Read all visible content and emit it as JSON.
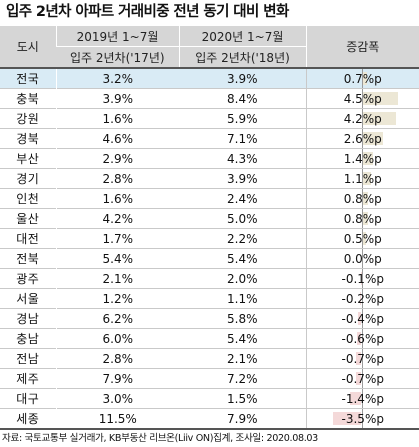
{
  "title": "입주 2년차 아파트 거래비중 전년 동기 대비 변화",
  "header": {
    "col_city": "도시",
    "col_2019": "2019년 1~7월",
    "col_2020": "2020년 1~7월",
    "col_change": "증감폭",
    "sub_2019": "입주 2년차('17년)",
    "sub_2020": "입주 2년차('18년)"
  },
  "chart_data": {
    "type": "table",
    "title": "입주 2년차 아파트 거래비중 전년 동기 대비 변화",
    "columns": [
      "도시",
      "2019년 1~7월 입주 2년차('17년)",
      "2020년 1~7월 입주 2년차('18년)",
      "증감폭"
    ],
    "rows": [
      {
        "city": "전국",
        "v2019": "3.2%",
        "v2020": "3.9%",
        "change": 0.7
      },
      {
        "city": "충북",
        "v2019": "3.9%",
        "v2020": "8.4%",
        "change": 4.5
      },
      {
        "city": "강원",
        "v2019": "1.6%",
        "v2020": "5.9%",
        "change": 4.2
      },
      {
        "city": "경북",
        "v2019": "4.6%",
        "v2020": "7.1%",
        "change": 2.6
      },
      {
        "city": "부산",
        "v2019": "2.9%",
        "v2020": "4.3%",
        "change": 1.4
      },
      {
        "city": "경기",
        "v2019": "2.8%",
        "v2020": "3.9%",
        "change": 1.1
      },
      {
        "city": "인천",
        "v2019": "1.6%",
        "v2020": "2.4%",
        "change": 0.8
      },
      {
        "city": "울산",
        "v2019": "4.2%",
        "v2020": "5.0%",
        "change": 0.8
      },
      {
        "city": "대전",
        "v2019": "1.7%",
        "v2020": "2.2%",
        "change": 0.5
      },
      {
        "city": "전북",
        "v2019": "5.4%",
        "v2020": "5.4%",
        "change": 0.0
      },
      {
        "city": "광주",
        "v2019": "2.1%",
        "v2020": "2.0%",
        "change": -0.1
      },
      {
        "city": "서울",
        "v2019": "1.2%",
        "v2020": "1.1%",
        "change": -0.2
      },
      {
        "city": "경남",
        "v2019": "6.2%",
        "v2020": "5.8%",
        "change": -0.4
      },
      {
        "city": "충남",
        "v2019": "6.0%",
        "v2020": "5.4%",
        "change": -0.6
      },
      {
        "city": "전남",
        "v2019": "2.8%",
        "v2020": "2.1%",
        "change": -0.7
      },
      {
        "city": "제주",
        "v2019": "7.9%",
        "v2020": "7.2%",
        "change": -0.7
      },
      {
        "city": "대구",
        "v2019": "3.0%",
        "v2020": "1.5%",
        "change": -1.4
      },
      {
        "city": "세종",
        "v2019": "11.5%",
        "v2020": "7.9%",
        "change": -3.5
      }
    ],
    "change_suffix": "%p"
  },
  "colors": {
    "positive_bar": "#ece7d5",
    "negative_bar": "#f4d9d9",
    "highlight_row": "#d9ebf5",
    "header_bg": "#d6d6d6"
  },
  "source": "자료: 국토교통부 실거래가, KB부동산 리브온(Liiv ON)집계, 조사일: 2020.08.03"
}
